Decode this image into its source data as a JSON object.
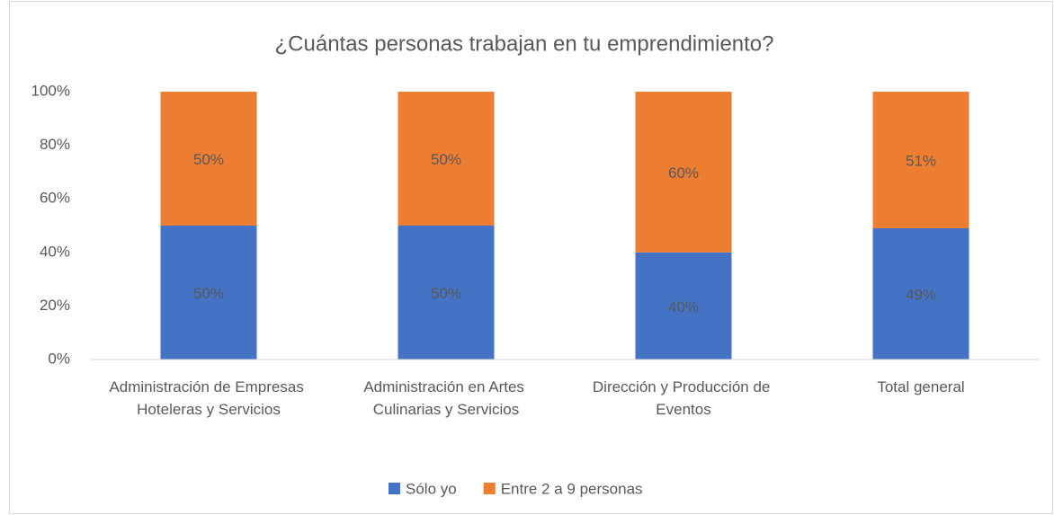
{
  "chart_data": {
    "type": "stacked_bar",
    "title": "¿Cuántas personas trabajan en tu emprendimiento?",
    "categories": [
      "Administración de Empresas Hoteleras y Servicios",
      "Administración en Artes Culinarias y Servicios",
      "Dirección y Producción de Eventos",
      "Total general"
    ],
    "series": [
      {
        "name": "Sólo yo",
        "color": "#4472c4",
        "values": [
          50,
          50,
          40,
          49
        ],
        "value_labels": [
          "50%",
          "50%",
          "40%",
          "49%"
        ]
      },
      {
        "name": "Entre 2 a 9 personas",
        "color": "#ed7d31",
        "values": [
          50,
          50,
          60,
          51
        ],
        "value_labels": [
          "50%",
          "50%",
          "60%",
          "51%"
        ]
      }
    ],
    "ylim": [
      0,
      100
    ],
    "yticks": [
      {
        "value": 0,
        "label": "0%"
      },
      {
        "value": 20,
        "label": "20%"
      },
      {
        "value": 40,
        "label": "40%"
      },
      {
        "value": 60,
        "label": "60%"
      },
      {
        "value": 80,
        "label": "80%"
      },
      {
        "value": 100,
        "label": "100%"
      }
    ],
    "grid": false,
    "legend": "bottom"
  }
}
